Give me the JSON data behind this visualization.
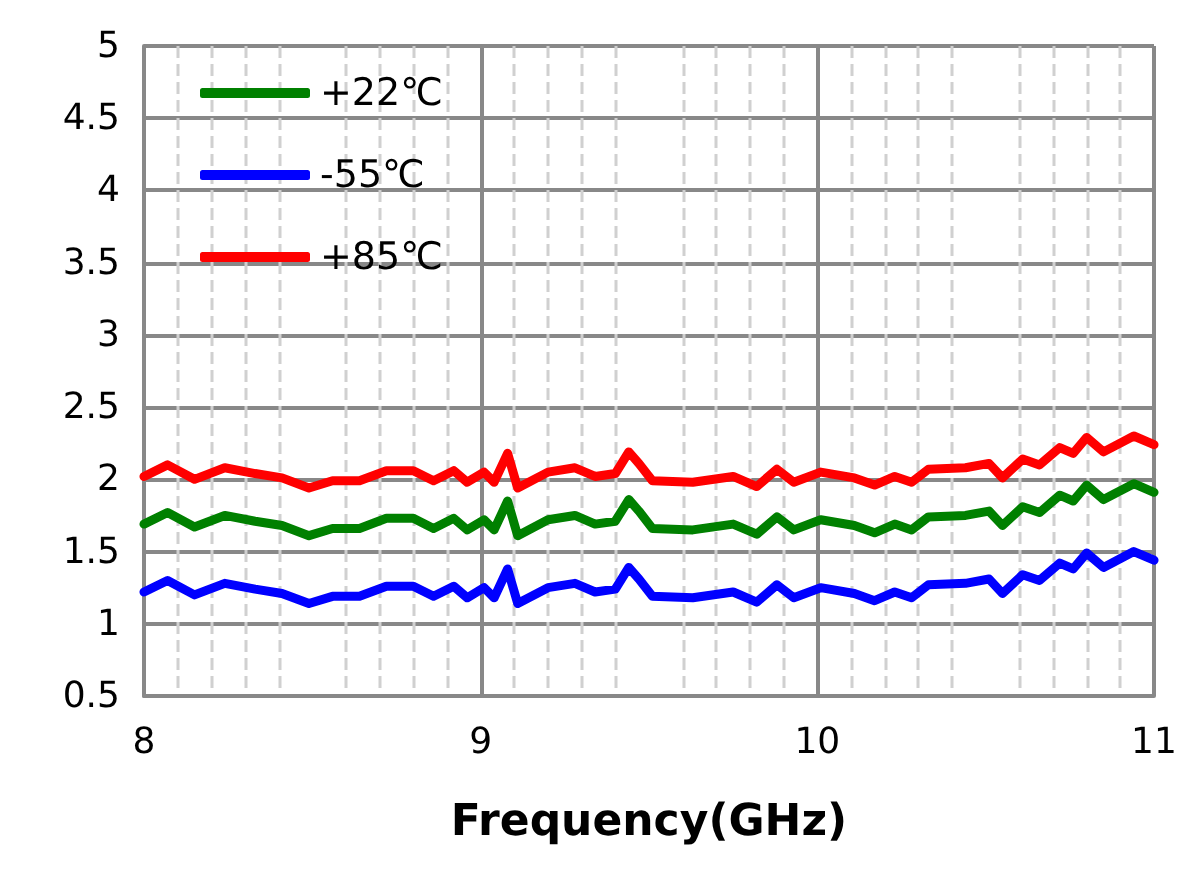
{
  "chart_data": {
    "type": "line",
    "xlabel": "Frequency(GHz)",
    "x": [
      8,
      8.07,
      8.15,
      8.24,
      8.33,
      8.41,
      8.49,
      8.56,
      8.64,
      8.72,
      8.8,
      8.86,
      8.92,
      8.96,
      9.01,
      9.04,
      9.08,
      9.11,
      9.2,
      9.28,
      9.34,
      9.4,
      9.44,
      9.47,
      9.51,
      9.63,
      9.75,
      9.82,
      9.88,
      9.93,
      10.01,
      10.11,
      10.17,
      10.23,
      10.28,
      10.33,
      10.44,
      10.51,
      10.55,
      10.61,
      10.66,
      10.72,
      10.76,
      10.8,
      10.85,
      10.94,
      11
    ],
    "series": [
      {
        "name": "+22℃",
        "color": "#008000",
        "values": [
          1.69,
          1.77,
          1.67,
          1.75,
          1.71,
          1.68,
          1.61,
          1.66,
          1.66,
          1.73,
          1.73,
          1.66,
          1.73,
          1.65,
          1.72,
          1.65,
          1.85,
          1.61,
          1.72,
          1.75,
          1.69,
          1.71,
          1.86,
          1.78,
          1.66,
          1.65,
          1.69,
          1.62,
          1.74,
          1.65,
          1.72,
          1.68,
          1.63,
          1.69,
          1.65,
          1.74,
          1.75,
          1.78,
          1.68,
          1.81,
          1.77,
          1.89,
          1.85,
          1.96,
          1.86,
          1.97,
          1.91
        ]
      },
      {
        "name": "-55℃",
        "color": "#0000ff",
        "values": [
          1.22,
          1.3,
          1.2,
          1.28,
          1.24,
          1.21,
          1.14,
          1.19,
          1.19,
          1.26,
          1.26,
          1.19,
          1.26,
          1.18,
          1.25,
          1.18,
          1.38,
          1.14,
          1.25,
          1.28,
          1.22,
          1.24,
          1.39,
          1.31,
          1.19,
          1.18,
          1.22,
          1.15,
          1.27,
          1.18,
          1.25,
          1.21,
          1.16,
          1.22,
          1.18,
          1.27,
          1.28,
          1.31,
          1.21,
          1.34,
          1.3,
          1.42,
          1.38,
          1.49,
          1.39,
          1.5,
          1.44
        ]
      },
      {
        "name": "+85℃",
        "color": "#ff0000",
        "values": [
          2.02,
          2.1,
          2.0,
          2.08,
          2.04,
          2.01,
          1.94,
          1.99,
          1.99,
          2.06,
          2.06,
          1.99,
          2.06,
          1.98,
          2.05,
          1.98,
          2.18,
          1.94,
          2.05,
          2.08,
          2.02,
          2.04,
          2.19,
          2.11,
          1.99,
          1.98,
          2.02,
          1.95,
          2.07,
          1.98,
          2.05,
          2.01,
          1.96,
          2.02,
          1.98,
          2.07,
          2.08,
          2.11,
          2.01,
          2.14,
          2.1,
          2.22,
          2.18,
          2.29,
          2.19,
          2.3,
          2.24
        ]
      }
    ],
    "xlim": [
      8,
      11
    ],
    "xticks": [
      8,
      9,
      10,
      11
    ],
    "ylim": [
      0.5,
      5
    ],
    "yticks": [
      0.5,
      1,
      1.5,
      2,
      2.5,
      3,
      3.5,
      4,
      4.5,
      5
    ],
    "grid": true,
    "legend": "top left",
    "marker": "none",
    "line_style": "solid"
  }
}
